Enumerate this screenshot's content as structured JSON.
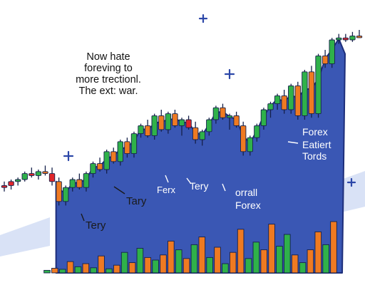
{
  "title_lines": [
    "Now hate",
    "foreving to",
    "more trectionl.",
    "The ext: war."
  ],
  "colors": {
    "background": "#ffffff",
    "area": "#3a57b4",
    "area_edge": "#1d2e7a",
    "up": "#2fb14a",
    "down": "#ef7a22",
    "red": "#e0262b",
    "outline": "#15204a",
    "ribbon": "#c9d6f2",
    "plus": "#2c47a8",
    "label_dark": "#1a1a1a",
    "label_light": "#ffffff"
  },
  "chart_data": {
    "type": "candlestick",
    "ylim": [
      0,
      100
    ],
    "candles": [
      {
        "o": 21,
        "h": 24,
        "l": 19,
        "c": 22,
        "color": "red"
      },
      {
        "o": 22,
        "h": 25,
        "l": 20,
        "c": 24,
        "color": "red"
      },
      {
        "o": 24,
        "h": 26,
        "l": 22,
        "c": 25,
        "color": "up"
      },
      {
        "o": 25,
        "h": 29,
        "l": 24,
        "c": 28,
        "color": "up"
      },
      {
        "o": 28,
        "h": 31,
        "l": 26,
        "c": 27,
        "color": "red"
      },
      {
        "o": 27,
        "h": 30,
        "l": 25,
        "c": 29,
        "color": "up"
      },
      {
        "o": 29,
        "h": 32,
        "l": 27,
        "c": 28,
        "color": "down"
      },
      {
        "o": 28,
        "h": 31,
        "l": 22,
        "c": 24,
        "color": "red"
      },
      {
        "o": 24,
        "h": 26,
        "l": 12,
        "c": 14,
        "color": "down"
      },
      {
        "o": 14,
        "h": 22,
        "l": 12,
        "c": 21,
        "color": "up"
      },
      {
        "o": 21,
        "h": 26,
        "l": 19,
        "c": 25,
        "color": "up"
      },
      {
        "o": 25,
        "h": 28,
        "l": 20,
        "c": 21,
        "color": "down"
      },
      {
        "o": 21,
        "h": 29,
        "l": 19,
        "c": 28,
        "color": "up"
      },
      {
        "o": 28,
        "h": 34,
        "l": 26,
        "c": 33,
        "color": "up"
      },
      {
        "o": 33,
        "h": 36,
        "l": 29,
        "c": 30,
        "color": "down"
      },
      {
        "o": 30,
        "h": 40,
        "l": 28,
        "c": 39,
        "color": "up"
      },
      {
        "o": 39,
        "h": 41,
        "l": 33,
        "c": 34,
        "color": "down"
      },
      {
        "o": 34,
        "h": 45,
        "l": 32,
        "c": 44,
        "color": "up"
      },
      {
        "o": 44,
        "h": 46,
        "l": 36,
        "c": 38,
        "color": "down"
      },
      {
        "o": 38,
        "h": 49,
        "l": 36,
        "c": 48,
        "color": "up"
      },
      {
        "o": 48,
        "h": 53,
        "l": 46,
        "c": 52,
        "color": "up"
      },
      {
        "o": 52,
        "h": 55,
        "l": 46,
        "c": 47,
        "color": "down"
      },
      {
        "o": 47,
        "h": 58,
        "l": 45,
        "c": 57,
        "color": "up"
      },
      {
        "o": 57,
        "h": 60,
        "l": 49,
        "c": 50,
        "color": "down"
      },
      {
        "o": 50,
        "h": 59,
        "l": 48,
        "c": 58,
        "color": "up"
      },
      {
        "o": 58,
        "h": 60,
        "l": 51,
        "c": 52,
        "color": "down"
      },
      {
        "o": 52,
        "h": 56,
        "l": 47,
        "c": 55,
        "color": "up"
      },
      {
        "o": 55,
        "h": 57,
        "l": 50,
        "c": 51,
        "color": "red"
      },
      {
        "o": 51,
        "h": 54,
        "l": 43,
        "c": 45,
        "color": "down"
      },
      {
        "o": 45,
        "h": 50,
        "l": 42,
        "c": 49,
        "color": "up"
      },
      {
        "o": 49,
        "h": 56,
        "l": 47,
        "c": 55,
        "color": "up"
      },
      {
        "o": 55,
        "h": 62,
        "l": 53,
        "c": 61,
        "color": "up"
      },
      {
        "o": 61,
        "h": 63,
        "l": 55,
        "c": 56,
        "color": "down"
      },
      {
        "o": 56,
        "h": 58,
        "l": 50,
        "c": 57,
        "color": "up"
      },
      {
        "o": 57,
        "h": 59,
        "l": 51,
        "c": 52,
        "color": "down"
      },
      {
        "o": 52,
        "h": 54,
        "l": 37,
        "c": 39,
        "color": "down"
      },
      {
        "o": 39,
        "h": 47,
        "l": 37,
        "c": 46,
        "color": "up"
      },
      {
        "o": 46,
        "h": 53,
        "l": 44,
        "c": 52,
        "color": "up"
      },
      {
        "o": 52,
        "h": 61,
        "l": 50,
        "c": 60,
        "color": "up"
      },
      {
        "o": 60,
        "h": 64,
        "l": 56,
        "c": 63,
        "color": "up"
      },
      {
        "o": 63,
        "h": 68,
        "l": 60,
        "c": 67,
        "color": "up"
      },
      {
        "o": 67,
        "h": 70,
        "l": 58,
        "c": 60,
        "color": "down"
      },
      {
        "o": 60,
        "h": 73,
        "l": 58,
        "c": 72,
        "color": "up"
      },
      {
        "o": 72,
        "h": 74,
        "l": 55,
        "c": 57,
        "color": "down"
      },
      {
        "o": 57,
        "h": 80,
        "l": 55,
        "c": 79,
        "color": "up"
      },
      {
        "o": 79,
        "h": 82,
        "l": 56,
        "c": 58,
        "color": "down"
      },
      {
        "o": 58,
        "h": 88,
        "l": 56,
        "c": 87,
        "color": "up"
      },
      {
        "o": 87,
        "h": 90,
        "l": 81,
        "c": 83,
        "color": "down"
      },
      {
        "o": 83,
        "h": 96,
        "l": 81,
        "c": 95,
        "color": "up"
      },
      {
        "o": 95,
        "h": 98,
        "l": 93,
        "c": 96,
        "color": "up"
      },
      {
        "o": 96,
        "h": 98,
        "l": 94,
        "c": 95,
        "color": "red"
      },
      {
        "o": 95,
        "h": 99,
        "l": 94,
        "c": 97,
        "color": "up"
      },
      {
        "o": 97,
        "h": 100,
        "l": 96,
        "c": 97,
        "color": "down"
      }
    ],
    "volume": [
      {
        "v": 5,
        "color": "up"
      },
      {
        "v": 9,
        "color": "down"
      },
      {
        "v": 7,
        "color": "up"
      },
      {
        "v": 22,
        "color": "down"
      },
      {
        "v": 12,
        "color": "up"
      },
      {
        "v": 18,
        "color": "down"
      },
      {
        "v": 10,
        "color": "up"
      },
      {
        "v": 33,
        "color": "down"
      },
      {
        "v": 8,
        "color": "up"
      },
      {
        "v": 15,
        "color": "down"
      },
      {
        "v": 40,
        "color": "up"
      },
      {
        "v": 20,
        "color": "down"
      },
      {
        "v": 48,
        "color": "up"
      },
      {
        "v": 30,
        "color": "down"
      },
      {
        "v": 25,
        "color": "up"
      },
      {
        "v": 35,
        "color": "down"
      },
      {
        "v": 62,
        "color": "down"
      },
      {
        "v": 45,
        "color": "up"
      },
      {
        "v": 28,
        "color": "down"
      },
      {
        "v": 55,
        "color": "up"
      },
      {
        "v": 70,
        "color": "down"
      },
      {
        "v": 30,
        "color": "up"
      },
      {
        "v": 50,
        "color": "down"
      },
      {
        "v": 18,
        "color": "up"
      },
      {
        "v": 40,
        "color": "down"
      },
      {
        "v": 85,
        "color": "down"
      },
      {
        "v": 28,
        "color": "up"
      },
      {
        "v": 60,
        "color": "up"
      },
      {
        "v": 45,
        "color": "down"
      },
      {
        "v": 95,
        "color": "down"
      },
      {
        "v": 52,
        "color": "up"
      },
      {
        "v": 75,
        "color": "up"
      },
      {
        "v": 35,
        "color": "down"
      },
      {
        "v": 20,
        "color": "up"
      },
      {
        "v": 45,
        "color": "down"
      },
      {
        "v": 80,
        "color": "down"
      },
      {
        "v": 55,
        "color": "up"
      },
      {
        "v": 100,
        "color": "down"
      }
    ],
    "annotations": [
      {
        "text": "Tary",
        "tone": "dark"
      },
      {
        "text": "Ferx",
        "tone": "light"
      },
      {
        "text": "Tery",
        "tone": "light"
      },
      {
        "text": "orrall",
        "tone": "light"
      },
      {
        "text": "Forex",
        "tone": "light"
      },
      {
        "text": "Tery",
        "tone": "dark"
      },
      {
        "text": "Forex",
        "tone": "light"
      },
      {
        "text": "Eatiert",
        "tone": "light"
      },
      {
        "text": "Tords",
        "tone": "light"
      }
    ]
  }
}
